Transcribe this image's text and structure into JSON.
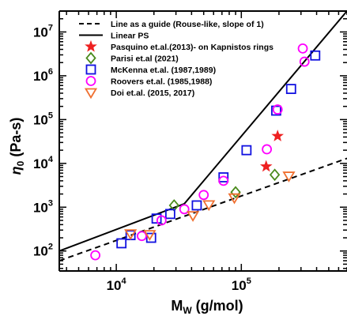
{
  "chart_data": {
    "type": "scatter",
    "x_scale": "log",
    "y_scale": "log",
    "xlim": [
      3500,
      700000
    ],
    "ylim": [
      35,
      30000000
    ],
    "xlabel_main": "M",
    "xlabel_sub": "W",
    "xlabel_rest": " (g/mol)",
    "ylabel_main": "η",
    "ylabel_sub": "0",
    "ylabel_rest": " (Pa-s)",
    "x_ticks": [
      {
        "value": 10000,
        "base": "10",
        "exp": "4"
      },
      {
        "value": 100000,
        "base": "10",
        "exp": "5"
      }
    ],
    "y_ticks": [
      {
        "value": 100,
        "base": "10",
        "exp": "2"
      },
      {
        "value": 1000,
        "base": "10",
        "exp": "3"
      },
      {
        "value": 10000,
        "base": "10",
        "exp": "4"
      },
      {
        "value": 100000,
        "base": "10",
        "exp": "5"
      },
      {
        "value": 1000000,
        "base": "10",
        "exp": "6"
      },
      {
        "value": 10000000,
        "base": "10",
        "exp": "7"
      }
    ],
    "legend_position": "top-left",
    "lines": [
      {
        "name": "Line as a guide (Rouse-like, slope of 1)",
        "style": "dashed",
        "color": "#000000",
        "x": [
          3500,
          700000
        ],
        "y": [
          60,
          13000
        ]
      },
      {
        "name": "Linear PS",
        "style": "solid",
        "color": "#000000",
        "x": [
          3500,
          35000,
          700000
        ],
        "y": [
          100,
          1200,
          30000000
        ]
      }
    ],
    "series": [
      {
        "name": "Pasquino et.al.(2013)- on Kapnistos rings",
        "marker": "star",
        "color": "#ee2020",
        "x": [
          158000,
          195000
        ],
        "y": [
          8500,
          42000
        ]
      },
      {
        "name": "Parisi et.al (2021)",
        "marker": "diamond",
        "color": "#4a8a1c",
        "x": [
          29000,
          90000,
          185000
        ],
        "y": [
          1100,
          2200,
          5500
        ]
      },
      {
        "name": "McKenna et.al. (1987,1989)",
        "marker": "square",
        "color": "#1010e0",
        "x": [
          11000,
          13000,
          19000,
          21000,
          27000,
          44000,
          72000,
          110000,
          190000,
          250000,
          390000
        ],
        "y": [
          150,
          230,
          200,
          550,
          700,
          1100,
          4800,
          20000,
          160000,
          500000,
          2900000
        ]
      },
      {
        "name": "Roovers et.al. (1985,1988)",
        "marker": "circle",
        "color": "#ff00ff",
        "x": [
          6800,
          16000,
          23000,
          35000,
          50000,
          72000,
          160000,
          195000,
          310000,
          320000
        ],
        "y": [
          80,
          220,
          500,
          900,
          1900,
          4000,
          21000,
          170000,
          4200000,
          2100000
        ]
      },
      {
        "name": "Doi et.al. (2015, 2017)",
        "marker": "triangle-down",
        "color": "#f07030",
        "x": [
          13000,
          18500,
          41000,
          55000,
          88000,
          240000
        ],
        "y": [
          250,
          240,
          650,
          1150,
          1650,
          5200
        ]
      }
    ]
  }
}
